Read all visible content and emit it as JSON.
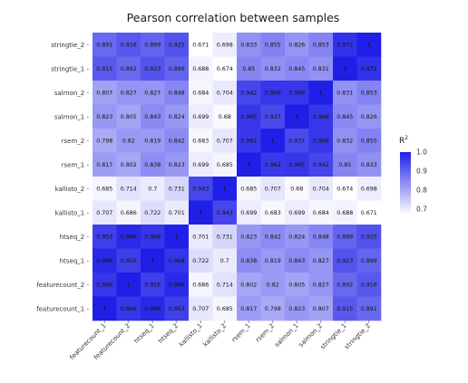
{
  "chart_data": {
    "type": "heatmap",
    "title": "Pearson correlation between samples",
    "x_categories": [
      "featurecount_1",
      "featurecount_2",
      "htseq_1",
      "htseq_2",
      "kallisto_1",
      "kallisto_2",
      "rsem_1",
      "rsem_2",
      "salmon_1",
      "salmon_2",
      "stringtie_1",
      "stringtie_2"
    ],
    "y_categories": [
      "stringtie_2",
      "stringtie_1",
      "salmon_2",
      "salmon_1",
      "rsem_2",
      "rsem_1",
      "kallisto_2",
      "kallisto_1",
      "htseq_2",
      "htseq_1",
      "featurecount_2",
      "featurecount_1"
    ],
    "values": [
      [
        0.891,
        0.916,
        0.899,
        0.925,
        0.671,
        0.698,
        0.833,
        0.855,
        0.826,
        0.853,
        0.972,
        1
      ],
      [
        0.915,
        0.892,
        0.923,
        0.899,
        0.688,
        0.674,
        0.85,
        0.832,
        0.845,
        0.831,
        1,
        0.972
      ],
      [
        0.807,
        0.827,
        0.827,
        0.848,
        0.684,
        0.704,
        0.942,
        0.966,
        0.966,
        1,
        0.831,
        0.853
      ],
      [
        0.823,
        0.805,
        0.843,
        0.824,
        0.699,
        0.68,
        0.965,
        0.937,
        1,
        0.966,
        0.845,
        0.826
      ],
      [
        0.798,
        0.82,
        0.819,
        0.842,
        0.683,
        0.707,
        0.962,
        1,
        0.937,
        0.966,
        0.832,
        0.855
      ],
      [
        0.817,
        0.802,
        0.838,
        0.823,
        0.699,
        0.685,
        1,
        0.962,
        0.965,
        0.942,
        0.85,
        0.833
      ],
      [
        0.685,
        0.714,
        0.7,
        0.731,
        0.943,
        1,
        0.685,
        0.707,
        0.68,
        0.704,
        0.674,
        0.698
      ],
      [
        0.707,
        0.686,
        0.722,
        0.701,
        1,
        0.943,
        0.699,
        0.683,
        0.699,
        0.684,
        0.688,
        0.671
      ],
      [
        0.953,
        0.986,
        0.968,
        1,
        0.701,
        0.731,
        0.823,
        0.842,
        0.824,
        0.848,
        0.899,
        0.925
      ],
      [
        0.986,
        0.955,
        1,
        0.968,
        0.722,
        0.7,
        0.838,
        0.819,
        0.843,
        0.827,
        0.923,
        0.899
      ],
      [
        0.966,
        1,
        0.955,
        0.986,
        0.686,
        0.714,
        0.802,
        0.82,
        0.805,
        0.827,
        0.892,
        0.916
      ],
      [
        1,
        0.966,
        0.986,
        0.953,
        0.707,
        0.685,
        0.817,
        0.798,
        0.823,
        0.807,
        0.915,
        0.891
      ]
    ],
    "value_range": [
      0.671,
      1
    ],
    "colors": {
      "low": "#ffffff",
      "high": "#1f1fe8"
    },
    "legend": {
      "title": "R",
      "title_superscript": "2",
      "placement": "right",
      "ticks": [
        "1.0",
        "0.9",
        "0.8",
        "0.7"
      ],
      "tick_values": [
        1.0,
        0.9,
        0.8,
        0.7
      ]
    }
  }
}
